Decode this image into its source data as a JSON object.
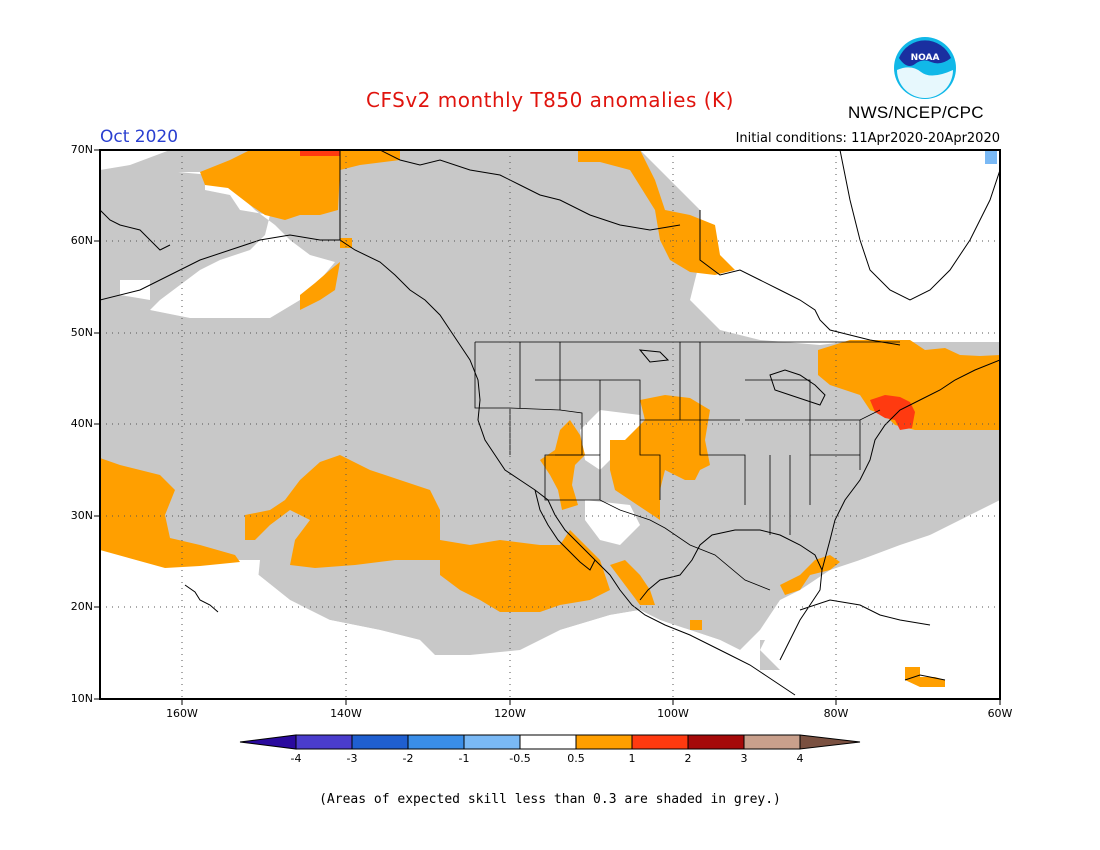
{
  "header": {
    "title": "CFSv2 monthly T850 anomalies (K)",
    "month": "Oct 2020",
    "initial_conditions": "Initial conditions: 11Apr2020-20Apr2020",
    "agency": "NWS/NCEP/CPC",
    "logo_text": "NOAA"
  },
  "map": {
    "lat_labels": [
      "70N",
      "60N",
      "50N",
      "40N",
      "30N",
      "20N",
      "10N"
    ],
    "lon_labels": [
      "160W",
      "140W",
      "120W",
      "100W",
      "80W",
      "60W"
    ],
    "colors": {
      "skill_grey": "#c8c8c8",
      "anom_05_1": "#ff9f00",
      "anom_1_2": "#ff3a10",
      "land_outline": "#000000"
    }
  },
  "legend": {
    "labels": [
      "-4",
      "-3",
      "-2",
      "-1",
      "-0.5",
      "0.5",
      "1",
      "2",
      "3",
      "4"
    ],
    "colors": [
      "#2a0a9e",
      "#4a3ccc",
      "#1f5fd0",
      "#3a8ee8",
      "#7ab9f5",
      "#ffffff",
      "#ff9f00",
      "#ff3a10",
      "#a50a0a",
      "#c9a08c",
      "#7a5040"
    ]
  },
  "footnote": "(Areas of expected skill less than 0.3 are shaded in grey.)"
}
